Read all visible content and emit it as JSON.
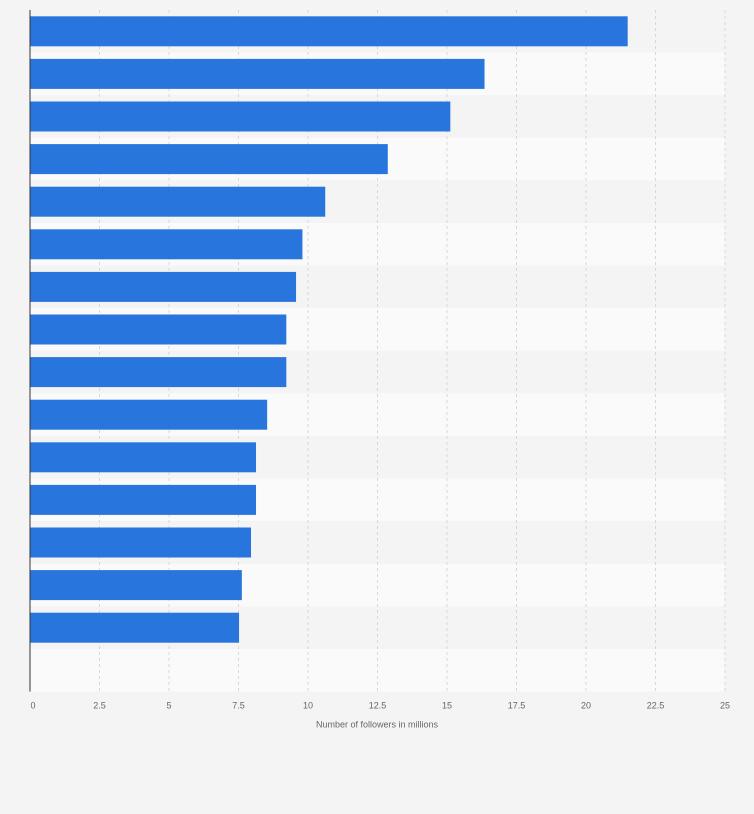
{
  "chart_data": {
    "type": "bar",
    "orientation": "horizontal",
    "title": "",
    "xlabel": "Number of followers in millions",
    "ylabel": "",
    "xlim": [
      0,
      25
    ],
    "xticks": [
      0,
      2.5,
      5,
      7.5,
      10,
      12.5,
      15,
      17.5,
      20,
      22.5,
      25
    ],
    "xtick_labels": [
      "0",
      "2.5",
      "5",
      "7.5",
      "10",
      "12.5",
      "15",
      "17.5",
      "20",
      "22.5",
      "25"
    ],
    "grid": true,
    "bar_color": "#2876dd",
    "values": [
      21.5,
      16.35,
      15.12,
      12.87,
      10.62,
      9.8,
      9.57,
      9.22,
      9.22,
      8.53,
      8.13,
      8.13,
      7.95,
      7.62,
      7.52
    ],
    "empty_rows_after": 1
  }
}
